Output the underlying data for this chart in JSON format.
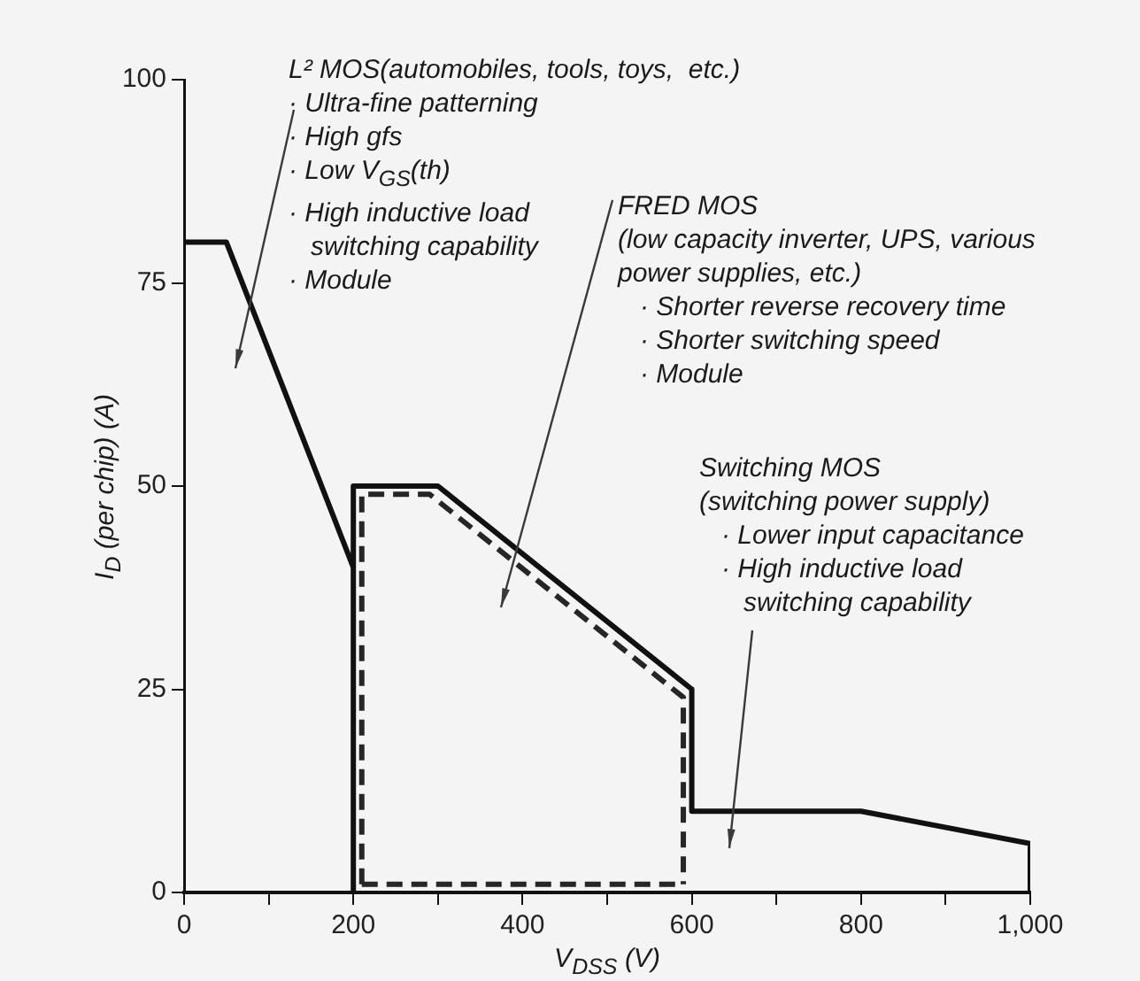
{
  "chart_data": {
    "type": "line",
    "xlabel": "V$_{DSS}$  (V)",
    "ylabel": "I$_{D}$ (per chip)  (A)",
    "xlim": [
      0,
      1000
    ],
    "ylim": [
      0,
      100
    ],
    "xticks": [
      0,
      {
        "value": 100,
        "label": null
      },
      200,
      {
        "value": 300,
        "label": null
      },
      400,
      {
        "value": 500,
        "label": null
      },
      600,
      {
        "value": 700,
        "label": null
      },
      800,
      {
        "value": 900,
        "label": null
      },
      {
        "value": 1000,
        "label": "1,000"
      }
    ],
    "yticks": [
      0,
      25,
      50,
      75,
      100
    ],
    "grid": false,
    "legend": false,
    "marker": "none",
    "series": [
      {
        "color": "#111111",
        "line_style": "solid",
        "x": [
          0,
          50,
          200,
          200,
          200,
          300,
          600,
          600,
          800,
          1000,
          1000
        ],
        "values": [
          80,
          80,
          40,
          0,
          50,
          50,
          25,
          10,
          10,
          6,
          0
        ]
      },
      {
        "color": "#262626",
        "line_style": "dashed",
        "x": [
          210,
          210,
          290,
          590,
          590
        ],
        "values": [
          1,
          49,
          49,
          24,
          1
        ]
      },
      {
        "color": "#262626",
        "line_style": "dashed",
        "x": [
          210,
          590
        ],
        "values": [
          1,
          1
        ]
      }
    ],
    "annotations": [
      "L² MOS(automobiles, tools, toys,  etc.)\n· Ultra-fine patterning\n· High gfs\n· Low V$_{GS}$(th)\n· High inductive load\n   switching capability\n· Module",
      "FRED MOS\n(low capacity inverter, UPS, various\npower supplies, etc.)\n   · Shorter reverse recovery time\n   · Shorter switching speed\n   · Module",
      "Switching MOS\n(switching power supply)\n   · Lower input capacitance\n   · High inductive load\n      switching capability"
    ]
  }
}
